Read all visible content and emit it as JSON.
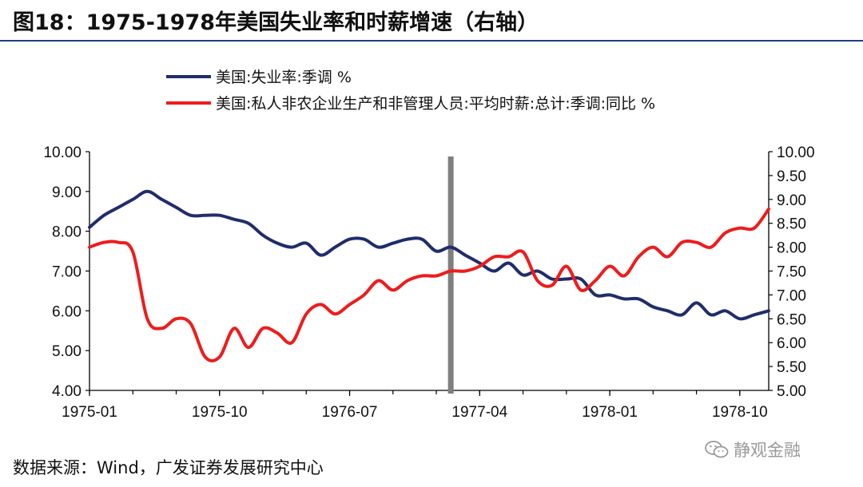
{
  "header": {
    "title": "图18：1975-1978年美国失业率和时薪增速（右轴）"
  },
  "footer": {
    "source": "数据来源：Wind，广发证券发展研究中心"
  },
  "watermark": {
    "text": "静观金融",
    "icon": "wechat-icon"
  },
  "chart_data": {
    "type": "line",
    "grid": false,
    "legend_position": "top-center",
    "left_axis": {
      "ylim": [
        4.0,
        10.0
      ],
      "ticks": [
        "4.00",
        "5.00",
        "6.00",
        "7.00",
        "8.00",
        "9.00",
        "10.00"
      ]
    },
    "right_axis": {
      "ylim": [
        5.0,
        10.0
      ],
      "ticks": [
        "5.00",
        "5.50",
        "6.00",
        "6.50",
        "7.00",
        "7.50",
        "8.00",
        "8.50",
        "9.00",
        "9.50",
        "10.00"
      ]
    },
    "x_tick_labels": [
      "1975-01",
      "1975-10",
      "1976-07",
      "1977-04",
      "1978-01",
      "1978-10"
    ],
    "vertical_marker": {
      "x": "1977-02",
      "color": "#7f7f7f"
    },
    "series": [
      {
        "name": "美国:失业率:季调 %",
        "axis": "left",
        "color": "#1f2d6b",
        "x": [
          "1975-01",
          "1975-02",
          "1975-03",
          "1975-04",
          "1975-05",
          "1975-06",
          "1975-07",
          "1975-08",
          "1975-09",
          "1975-10",
          "1975-11",
          "1975-12",
          "1976-01",
          "1976-02",
          "1976-03",
          "1976-04",
          "1976-05",
          "1976-06",
          "1976-07",
          "1976-08",
          "1976-09",
          "1976-10",
          "1976-11",
          "1976-12",
          "1977-01",
          "1977-02",
          "1977-03",
          "1977-04",
          "1977-05",
          "1977-06",
          "1977-07",
          "1977-08",
          "1977-09",
          "1977-10",
          "1977-11",
          "1977-12",
          "1978-01",
          "1978-02",
          "1978-03",
          "1978-04",
          "1978-05",
          "1978-06",
          "1978-07",
          "1978-08",
          "1978-09",
          "1978-10",
          "1978-11",
          "1978-12"
        ],
        "values": [
          8.1,
          8.4,
          8.6,
          8.8,
          9.0,
          8.8,
          8.6,
          8.4,
          8.4,
          8.4,
          8.3,
          8.2,
          7.9,
          7.7,
          7.6,
          7.7,
          7.4,
          7.6,
          7.8,
          7.8,
          7.6,
          7.7,
          7.8,
          7.8,
          7.5,
          7.6,
          7.4,
          7.2,
          7.0,
          7.2,
          6.9,
          7.0,
          6.8,
          6.8,
          6.8,
          6.4,
          6.4,
          6.3,
          6.3,
          6.1,
          6.0,
          5.9,
          6.2,
          5.9,
          6.0,
          5.8,
          5.9,
          6.0
        ]
      },
      {
        "name": "美国:私人非农企业生产和非管理人员:平均时薪:总计:季调:同比 %",
        "axis": "right",
        "color": "#ee1c1c",
        "x": [
          "1975-01",
          "1975-02",
          "1975-03",
          "1975-04",
          "1975-05",
          "1975-06",
          "1975-07",
          "1975-08",
          "1975-09",
          "1975-10",
          "1975-11",
          "1975-12",
          "1976-01",
          "1976-02",
          "1976-03",
          "1976-04",
          "1976-05",
          "1976-06",
          "1976-07",
          "1976-08",
          "1976-09",
          "1976-10",
          "1976-11",
          "1976-12",
          "1977-01",
          "1977-02",
          "1977-03",
          "1977-04",
          "1977-05",
          "1977-06",
          "1977-07",
          "1977-08",
          "1977-09",
          "1977-10",
          "1977-11",
          "1977-12",
          "1978-01",
          "1978-02",
          "1978-03",
          "1978-04",
          "1978-05",
          "1978-06",
          "1978-07",
          "1978-08",
          "1978-09",
          "1978-10",
          "1978-11",
          "1978-12"
        ],
        "values": [
          8.0,
          8.1,
          8.1,
          7.9,
          6.5,
          6.3,
          6.5,
          6.4,
          5.7,
          5.7,
          6.3,
          5.9,
          6.3,
          6.2,
          6.0,
          6.6,
          6.8,
          6.6,
          6.8,
          7.0,
          7.3,
          7.1,
          7.3,
          7.4,
          7.4,
          7.5,
          7.5,
          7.6,
          7.8,
          7.8,
          7.9,
          7.3,
          7.2,
          7.6,
          7.1,
          7.3,
          7.6,
          7.4,
          7.8,
          8.0,
          7.8,
          8.1,
          8.1,
          8.0,
          8.3,
          8.4,
          8.4,
          8.8
        ]
      }
    ]
  }
}
